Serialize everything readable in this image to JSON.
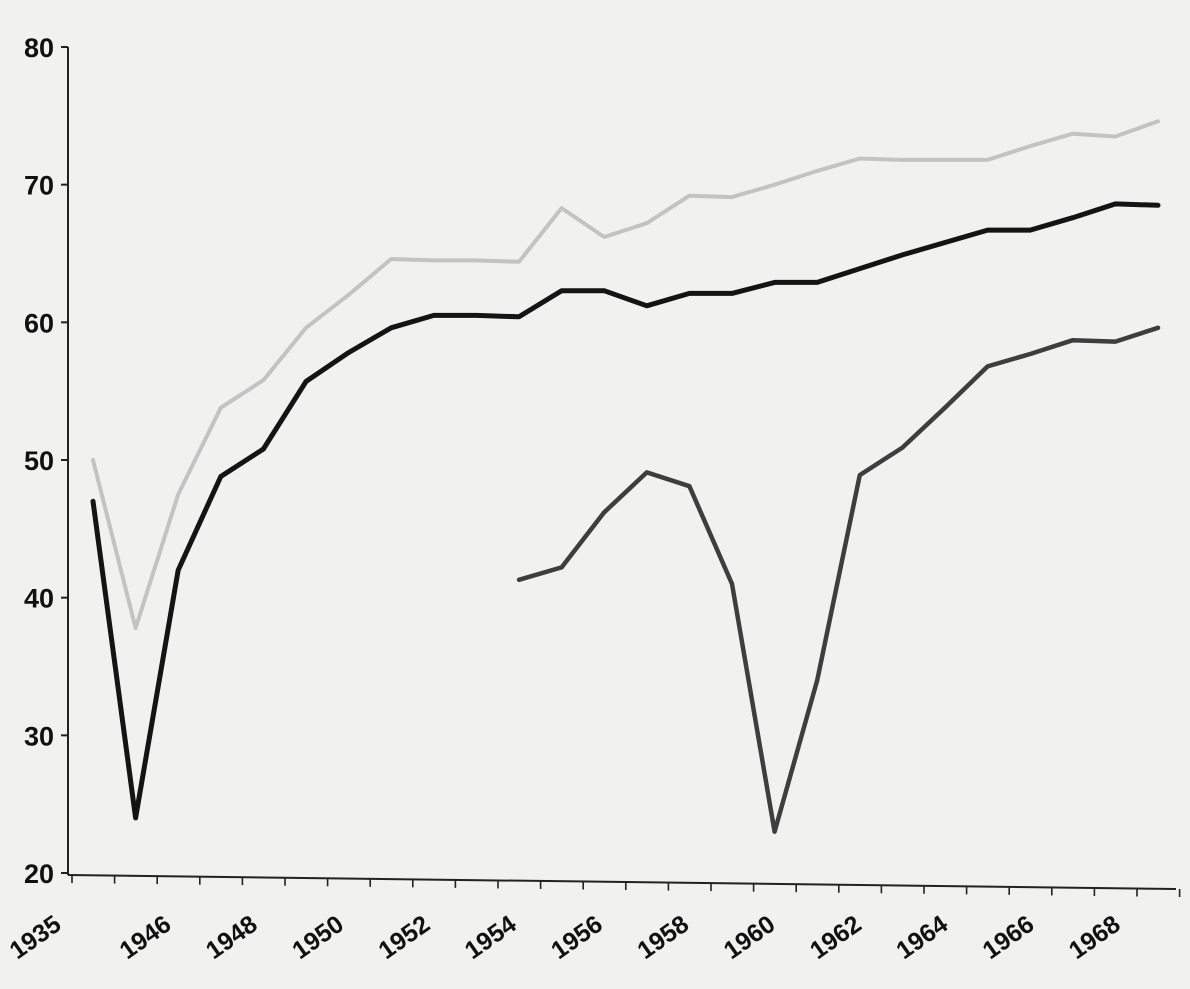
{
  "chart_data": {
    "type": "line",
    "title": "",
    "xlabel": "",
    "ylabel": "",
    "ylim": [
      20,
      80
    ],
    "grid": false,
    "legend": "none",
    "yticks": [
      "80",
      "70",
      "60",
      "50",
      "40",
      "30",
      "20"
    ],
    "xtick_labels": [
      "1935",
      "1946",
      "1948",
      "1950",
      "1952",
      "1954",
      "1956",
      "1958",
      "1960",
      "1962",
      "1964",
      "1966",
      "1968"
    ],
    "x": [
      "1935",
      "1945",
      "1946",
      "1947",
      "1948",
      "1949",
      "1950",
      "1951",
      "1952",
      "1953",
      "1954",
      "1955",
      "1956",
      "1957",
      "1958",
      "1959",
      "1960",
      "1961",
      "1962",
      "1963",
      "1964",
      "1965",
      "1966",
      "1967",
      "1968",
      "1969",
      "1970"
    ],
    "series": [
      {
        "key": "light",
        "color": "#c3c3c3",
        "width": 4,
        "values": [
          50,
          37.8,
          47.5,
          53.8,
          55.8,
          59.6,
          62,
          64.6,
          64.5,
          64.5,
          64.4,
          68.3,
          66.2,
          67.2,
          69.2,
          69.1,
          70,
          71,
          71.9,
          71.8,
          71.8,
          71.8,
          72.8,
          73.7,
          73.5,
          74.6,
          null
        ]
      },
      {
        "key": "black",
        "color": "#141414",
        "width": 5,
        "values": [
          47,
          24,
          42,
          48.8,
          50.8,
          55.7,
          57.8,
          59.6,
          60.5,
          60.5,
          60.4,
          62.3,
          62.3,
          61.2,
          62.1,
          62.1,
          62.9,
          62.9,
          63.9,
          64.9,
          65.8,
          66.7,
          66.7,
          67.6,
          68.6,
          68.5,
          null
        ]
      },
      {
        "key": "dark-grey",
        "color": "#3e3e3e",
        "width": 4.5,
        "values": [
          null,
          null,
          null,
          null,
          null,
          null,
          null,
          null,
          null,
          null,
          41.3,
          42.2,
          46.2,
          49.1,
          48.1,
          41,
          23,
          34,
          48.9,
          50.9,
          53.8,
          56.8,
          57.7,
          58.7,
          58.6,
          59.6,
          null
        ]
      }
    ]
  }
}
